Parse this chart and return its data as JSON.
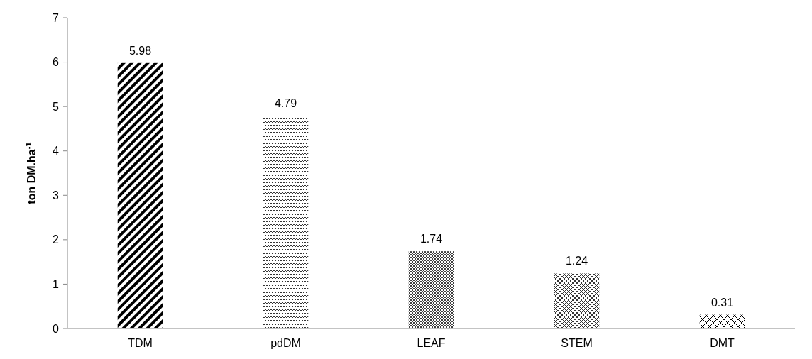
{
  "chart_data": {
    "type": "bar",
    "ylabel": "ton DM.ha$^{-1}$",
    "categories": [
      "TDM",
      "pdDM",
      "LEAF",
      "STEM",
      "DMT"
    ],
    "values": [
      5.98,
      4.79,
      1.74,
      1.24,
      0.31
    ],
    "color": "#000000",
    "ylim": [
      0,
      7
    ],
    "yticks": [
      0,
      1,
      2,
      3,
      4,
      5,
      6,
      7
    ],
    "data_labels": true
  }
}
